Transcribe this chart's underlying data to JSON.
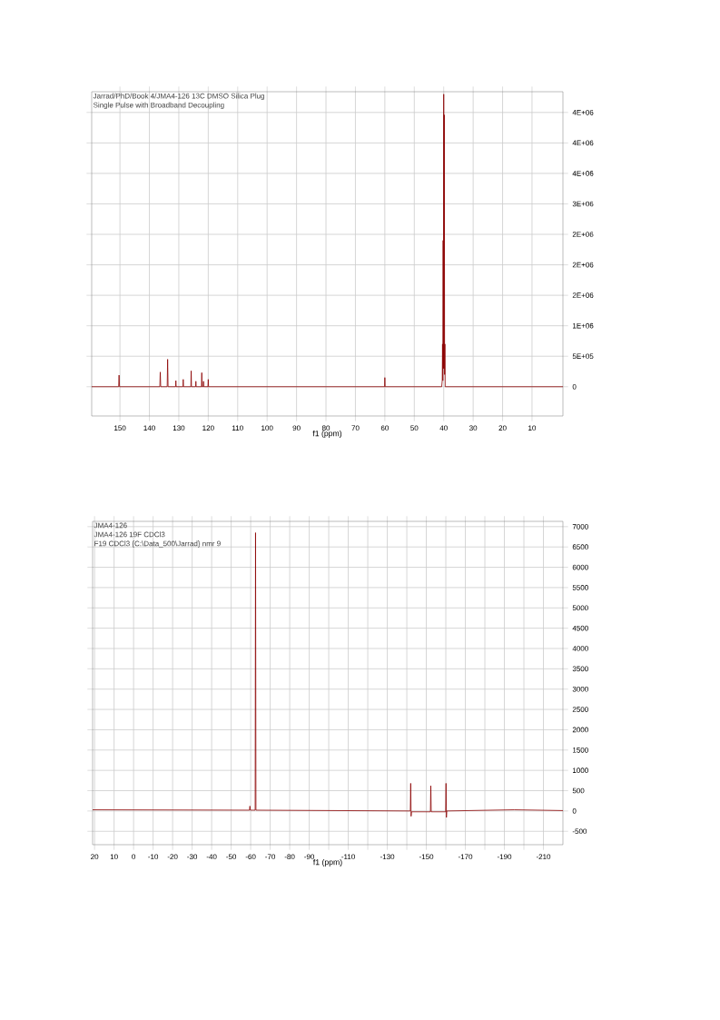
{
  "chart_data": [
    {
      "type": "line",
      "xlabel": "f1 (ppm)",
      "annotations": [
        "Jarrad/PhD/Book 4/JMA4-126 13C DMSO Silica Plug",
        "Single Pulse with Broadband Decoupling"
      ],
      "color": "#8b0000",
      "grid": true,
      "x": [
        159.6,
        150.45,
        150.3,
        150.15,
        136.45,
        136.3,
        136.15,
        133.95,
        133.8,
        133.65,
        131.1,
        131.0,
        130.9,
        128.6,
        128.5,
        128.4,
        125.9,
        125.8,
        125.7,
        124.3,
        124.2,
        124.1,
        122.3,
        122.2,
        122.1,
        121.7,
        121.6,
        121.5,
        120.1,
        120.0,
        119.9,
        60.1,
        60.0,
        59.9,
        40.7,
        40.5,
        40.4,
        40.3,
        40.2,
        40.1,
        40.0,
        39.9,
        39.8,
        39.7,
        39.6,
        39.5,
        -0.5
      ],
      "values": [
        0,
        0,
        190000,
        0,
        0,
        240000,
        0,
        0,
        450000,
        0,
        0,
        100000,
        0,
        0,
        120000,
        0,
        0,
        260000,
        0,
        0,
        90000,
        0,
        0,
        230000,
        0,
        0,
        90000,
        0,
        0,
        120000,
        0,
        0,
        150000,
        0,
        0,
        100000,
        700000,
        100000,
        2400000,
        300000,
        4800000,
        300000,
        4460000,
        200000,
        700000,
        0,
        0
      ],
      "xlim": [
        159.6,
        -0.5
      ],
      "ylim": [
        -480000,
        4840000
      ],
      "xticks": [
        150,
        140,
        130,
        120,
        110,
        100,
        90,
        80,
        70,
        60,
        50,
        40,
        30,
        20,
        10
      ],
      "yticks": [
        0,
        {
          "value": 500000,
          "label": "5E+05"
        },
        {
          "value": 1000000,
          "label": "1E+06"
        },
        {
          "value": 1500000,
          "label": "2E+06"
        },
        {
          "value": 2000000,
          "label": "2E+06"
        },
        {
          "value": 2500000,
          "label": "2E+06"
        },
        {
          "value": 3000000,
          "label": "3E+06"
        },
        {
          "value": 3500000,
          "label": "4E+06"
        },
        {
          "value": 4000000,
          "label": "4E+06"
        },
        {
          "value": 4500000,
          "label": "4E+06"
        }
      ]
    },
    {
      "type": "line",
      "xlabel": "f1 (ppm)",
      "annotations": [
        "JMA4-126",
        "JMA4-126 19F CDCl3",
        "F19 CDCl3 {C:\\Data_500\\Jarrad} nmr 9"
      ],
      "color": "#8b0000",
      "grid": true,
      "x": [
        21,
        -59.4,
        -59.6,
        -59.8,
        -62.3,
        -62.5,
        -62.7,
        -141.8,
        -142.0,
        -142.2,
        -142.4,
        -152.1,
        -152.3,
        -152.5,
        -159.9,
        -160.1,
        -160.3,
        -160.5,
        -195,
        -220
      ],
      "values": [
        30,
        20,
        120,
        20,
        20,
        6850,
        20,
        0,
        680,
        -130,
        -20,
        -20,
        620,
        -20,
        -20,
        680,
        -160,
        0,
        30,
        10
      ],
      "xlim": [
        21,
        -220
      ],
      "ylim": [
        -830,
        7130
      ],
      "xticks": [
        20,
        10,
        0,
        -10,
        -20,
        -30,
        -40,
        -50,
        -60,
        -70,
        -80,
        -90,
        {
          "value": -100,
          "label": null
        },
        -110,
        {
          "value": -120,
          "label": null
        },
        -130,
        {
          "value": -140,
          "label": null
        },
        -150,
        {
          "value": -160,
          "label": null
        },
        -170,
        {
          "value": -180,
          "label": null
        },
        -190,
        {
          "value": -200,
          "label": null
        },
        -210
      ],
      "yticks": [
        -500,
        0,
        500,
        1000,
        1500,
        2000,
        2500,
        3000,
        3500,
        4000,
        4500,
        5000,
        5500,
        6000,
        6500,
        7000
      ]
    }
  ]
}
